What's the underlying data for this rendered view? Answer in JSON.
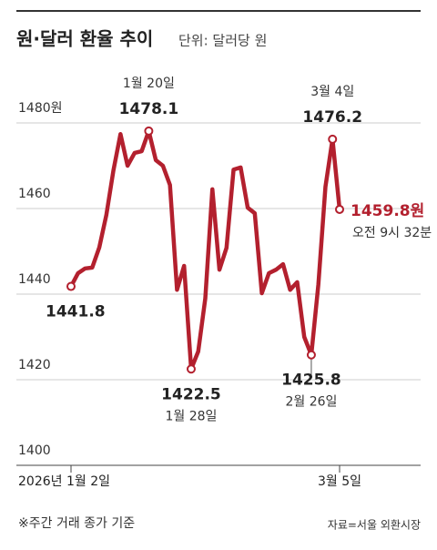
{
  "chart_data": {
    "type": "line",
    "title": "원·달러 환율 추이",
    "subtitle": "단위: 달러당 원",
    "categories": [
      "2026년 1월 2일",
      null,
      null,
      null,
      null,
      null,
      null,
      null,
      null,
      null,
      null,
      null,
      null,
      null,
      null,
      null,
      null,
      null,
      null,
      null,
      null,
      null,
      null,
      null,
      null,
      null,
      null,
      null,
      null,
      null,
      null,
      null,
      null,
      null,
      null,
      null,
      null,
      null,
      "3월 5일"
    ],
    "series": [
      {
        "name": "원·달러 환율",
        "color": "#b3202e",
        "values": [
          1441.8,
          1444.9,
          1446,
          1446.2,
          1450.9,
          1458.5,
          1468.9,
          1477.4,
          1470,
          1473,
          1473.4,
          1478.1,
          1471.3,
          1470,
          1465.5,
          1441,
          1446.6,
          1422.5,
          1426.6,
          1439,
          1464.5,
          1445.7,
          1450.8,
          1469.1,
          1469.6,
          1460.2,
          1458.9,
          1440.2,
          1444.9,
          1445.7,
          1447,
          1441,
          1442.8,
          1430,
          1425.8,
          1442.3,
          1465.1,
          1476.2,
          1459.8
        ],
        "value_labels": [
          "1441.8",
          null,
          null,
          null,
          null,
          null,
          null,
          null,
          null,
          null,
          null,
          "1478.1",
          null,
          null,
          null,
          null,
          null,
          "1422.5",
          null,
          null,
          null,
          null,
          null,
          null,
          null,
          null,
          null,
          null,
          null,
          null,
          null,
          null,
          null,
          null,
          "1425.8",
          null,
          null,
          "1476.2",
          "1459.8원"
        ]
      }
    ],
    "annotations": [
      "1월 20일",
      "1월 28일",
      "2월 26일",
      "3월 4일",
      "오전 9시 32분"
    ],
    "ylim": [
      1400,
      1480
    ],
    "yticks": [
      1400,
      1420,
      1440,
      1460,
      {
        "value": 1480,
        "label": "1480원"
      }
    ],
    "grid": true,
    "note": "※주간 거래 종가 기준",
    "source": "자료=서울 외환시장"
  }
}
